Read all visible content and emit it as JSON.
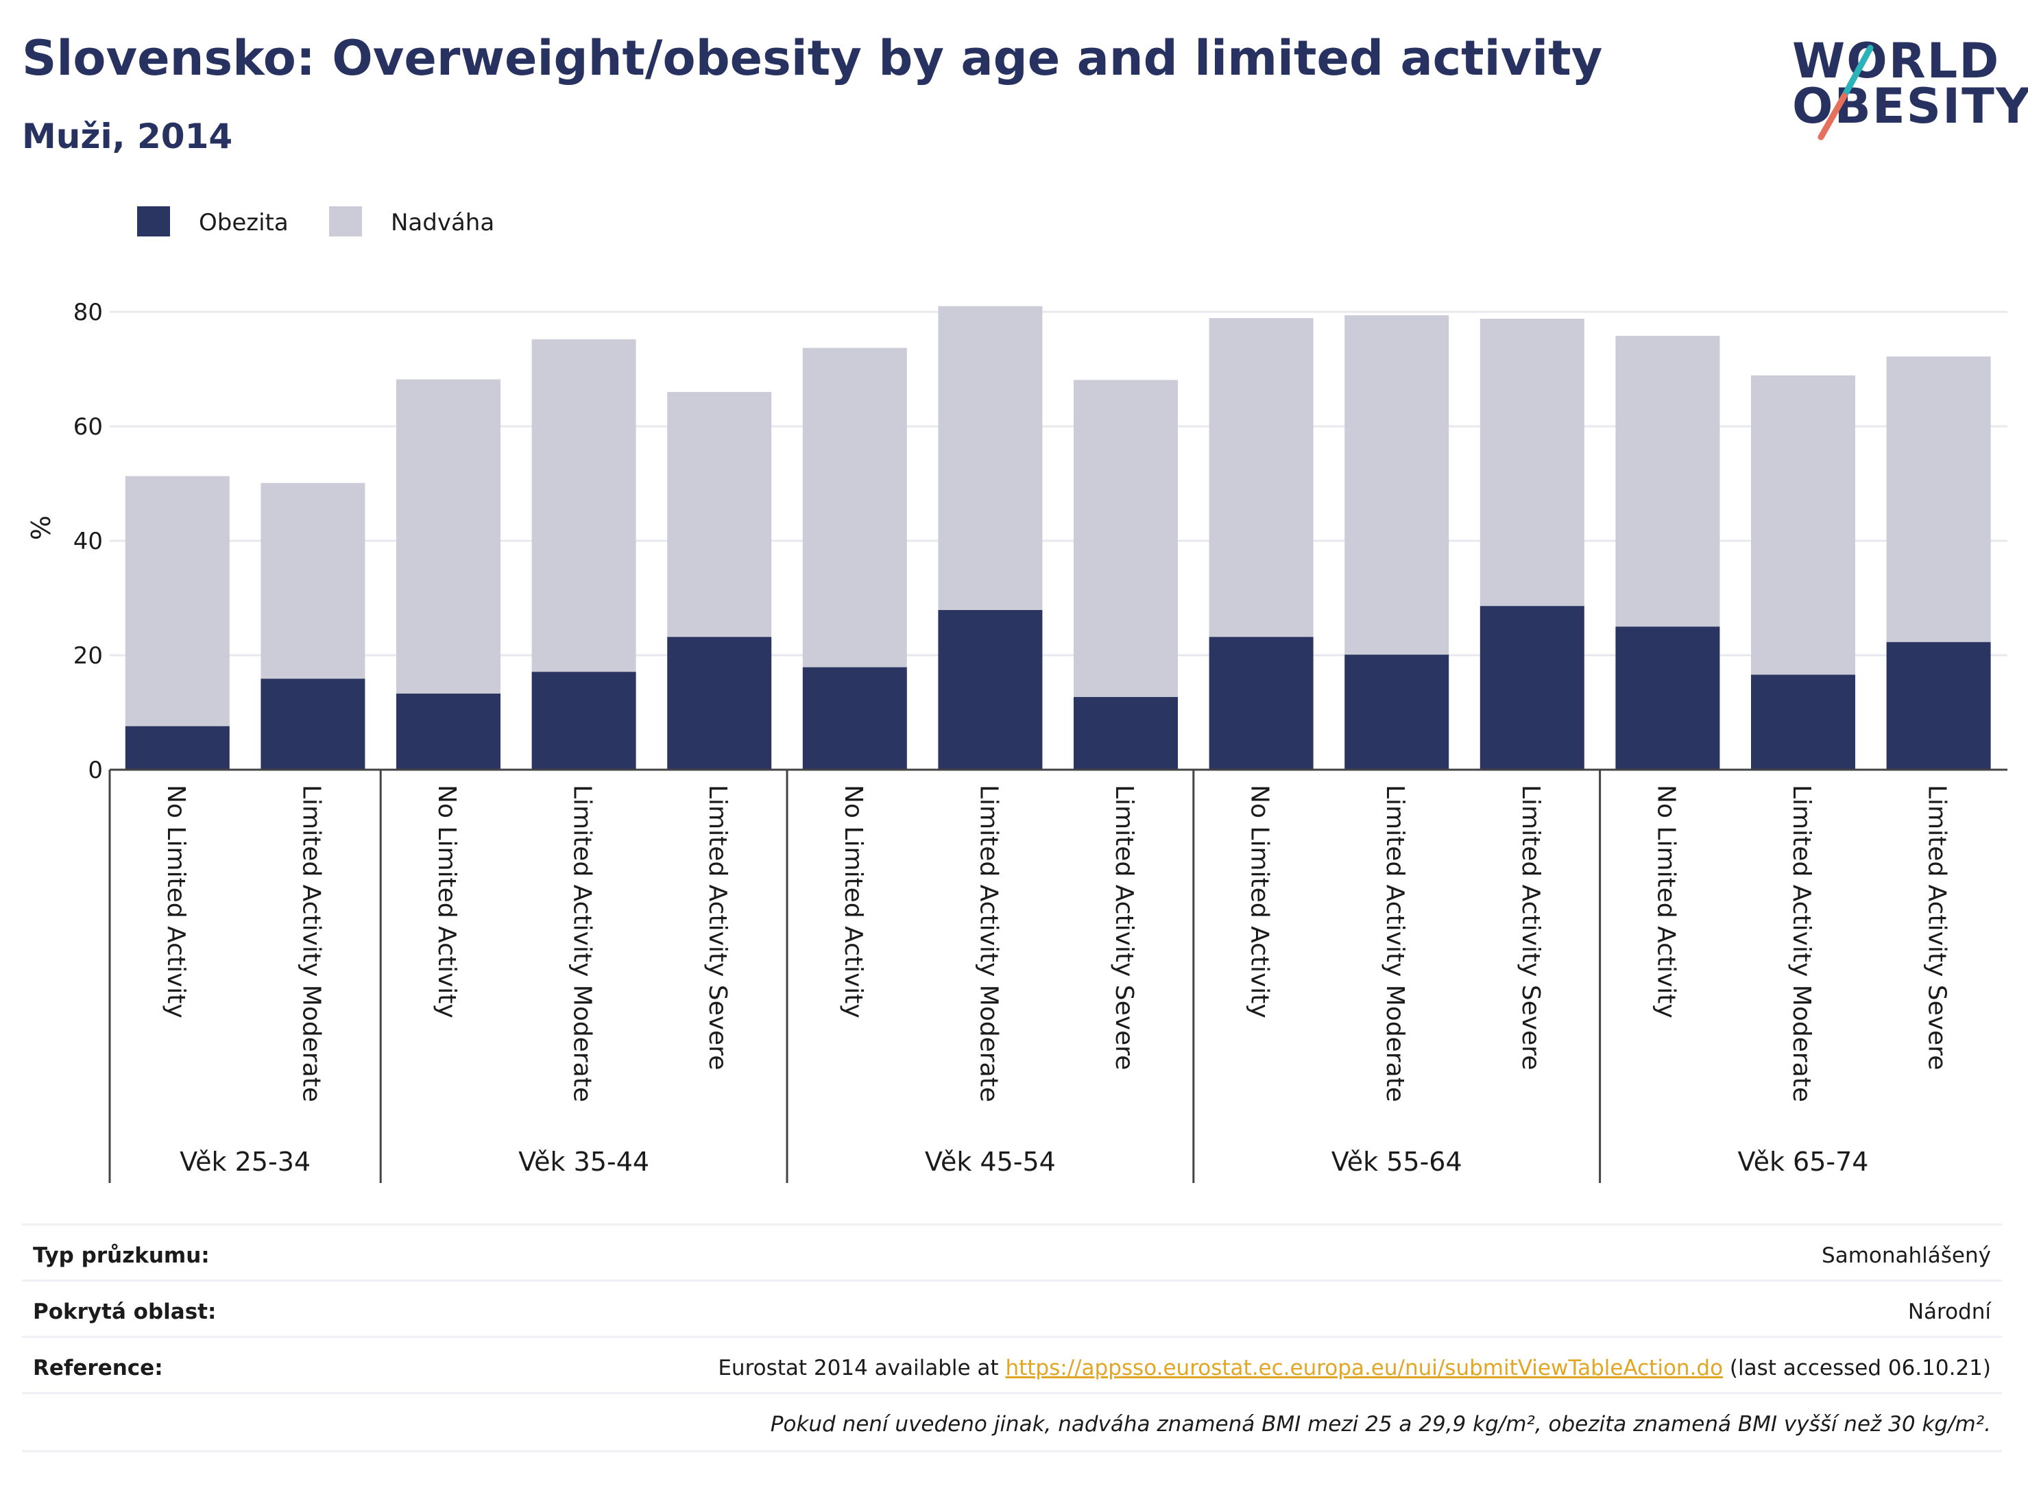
{
  "header": {
    "title": "Slovensko: Overweight/obesity by age and limited activity",
    "subtitle": "Muži, 2014"
  },
  "logo": {
    "line1": "WORLD",
    "line2": "OBESITY"
  },
  "legend": [
    {
      "label": "Obezita",
      "color": "#2a3561"
    },
    {
      "label": "Nadváha",
      "color": "#cbccd8"
    }
  ],
  "chart_data": {
    "type": "bar",
    "stacked": true,
    "ylabel": "%",
    "xlabel": "",
    "ylim": [
      0,
      90
    ],
    "yticks": [
      0,
      20,
      40,
      60,
      80
    ],
    "grid": true,
    "legend_position": "top-left",
    "groups": [
      {
        "label": "Věk 25-34",
        "categories": [
          "No Limited Activity",
          "Limited Activity Moderate"
        ]
      },
      {
        "label": "Věk 35-44",
        "categories": [
          "No Limited Activity",
          "Limited Activity Moderate",
          "Limited Activity Severe"
        ]
      },
      {
        "label": "Věk 45-54",
        "categories": [
          "No Limited Activity",
          "Limited Activity Moderate",
          "Limited Activity Severe"
        ]
      },
      {
        "label": "Věk 55-64",
        "categories": [
          "No Limited Activity",
          "Limited Activity Moderate",
          "Limited Activity Severe"
        ]
      },
      {
        "label": "Věk 65-74",
        "categories": [
          "No Limited Activity",
          "Limited Activity Moderate",
          "Limited Activity Severe"
        ]
      }
    ],
    "series": [
      {
        "name": "Obezita",
        "color": "#2a3561",
        "values": [
          7.6,
          15.9,
          13.3,
          17.1,
          23.2,
          17.9,
          27.9,
          12.7,
          23.2,
          20.1,
          28.6,
          25.0,
          16.6,
          22.3
        ]
      },
      {
        "name": "Nadváha",
        "color": "#cbccd8",
        "values": [
          43.7,
          34.2,
          54.9,
          58.1,
          42.8,
          55.8,
          53.1,
          55.4,
          55.7,
          59.3,
          50.2,
          50.8,
          52.3,
          49.9
        ]
      }
    ]
  },
  "info": {
    "rows": [
      {
        "label": "Typ průzkumu:",
        "value": "Samonahlášený"
      },
      {
        "label": "Pokrytá oblast:",
        "value": "Národní"
      }
    ],
    "reference": {
      "label": "Reference:",
      "prefix": "Eurostat 2014 available at ",
      "link": "https://appsso.eurostat.ec.europa.eu/nui/submitViewTableAction.do",
      "suffix": " (last accessed 06.10.21)"
    },
    "footnote": "Pokud není uvedeno jinak, nadváha znamená BMI mezi 25 a 29,9 kg/m², obezita znamená BMI vyšší než 30 kg/m²."
  }
}
